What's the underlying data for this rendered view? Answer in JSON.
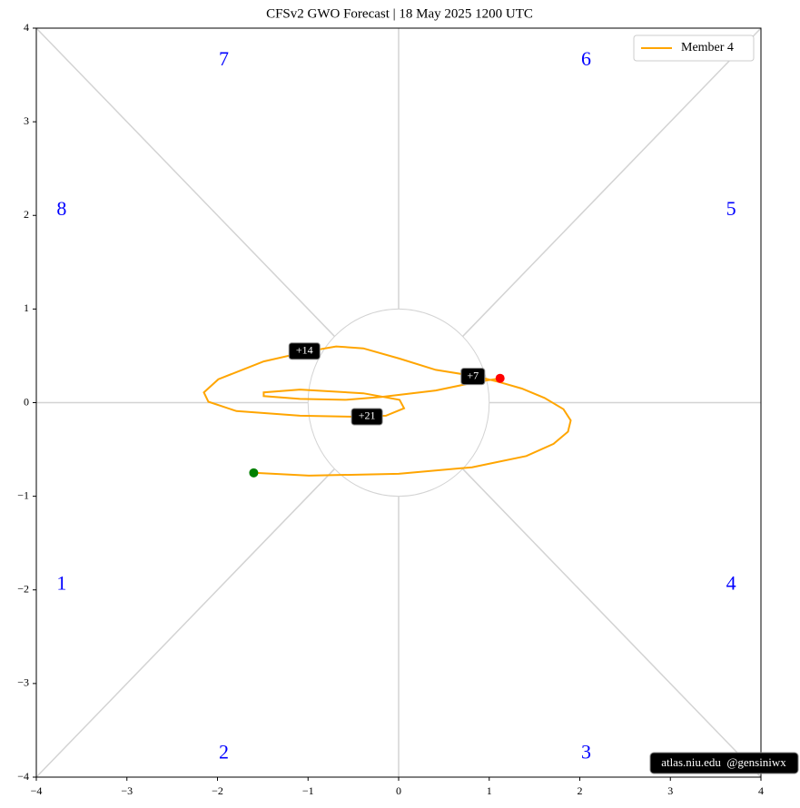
{
  "chart_data": {
    "type": "line",
    "title": "CFSv2 GWO Forecast   |   18  May  2025 1200 UTC",
    "xlim": [
      -4,
      4
    ],
    "ylim": [
      -4,
      4
    ],
    "xticks": [
      {
        "value": -4,
        "label": "−4"
      },
      {
        "value": -3,
        "label": "−3"
      },
      {
        "value": -2,
        "label": "−2"
      },
      {
        "value": -1,
        "label": "−1"
      },
      0,
      1,
      2,
      3,
      4
    ],
    "yticks": [
      {
        "value": -4,
        "label": "−4"
      },
      {
        "value": -3,
        "label": "−3"
      },
      {
        "value": -2,
        "label": "−2"
      },
      {
        "value": -1,
        "label": "−1"
      },
      0,
      1,
      2,
      3,
      4
    ],
    "legend": "upper right",
    "start_color": "green",
    "end_color": "red",
    "series": [
      {
        "name": "Member 4",
        "color": "orange",
        "x": [
          -1.6,
          -0.99,
          0,
          0.81,
          1.41,
          1.71,
          1.87,
          1.9,
          1.82,
          1.61,
          1.36,
          1.11,
          0.86,
          0.41,
          0.01,
          -0.39,
          -0.69,
          -0.99,
          -1.49,
          -1.99,
          -2.15,
          -2.1,
          -1.79,
          -1.09,
          -0.49,
          -0.14,
          0.06,
          0.01,
          -0.39,
          -1.09,
          -1.49,
          -1.49,
          -1.09,
          -0.59,
          -0.19,
          0.41,
          0.86,
          1.12
        ],
        "values": [
          -0.75,
          -0.78,
          -0.76,
          -0.69,
          -0.57,
          -0.44,
          -0.31,
          -0.19,
          -0.07,
          0.05,
          0.15,
          0.22,
          0.28,
          0.35,
          0.47,
          0.58,
          0.6,
          0.55,
          0.44,
          0.25,
          0.11,
          0.01,
          -0.09,
          -0.14,
          -0.15,
          -0.14,
          -0.06,
          0.03,
          0.1,
          0.14,
          0.11,
          0.07,
          0.04,
          0.03,
          0.06,
          0.13,
          0.22,
          0.26
        ]
      }
    ],
    "annotations": [
      {
        "text": "+7",
        "x": 0.82,
        "y": 0.28
      },
      {
        "text": "+14",
        "x": -1.04,
        "y": 0.55
      },
      {
        "text": "+21",
        "x": -0.35,
        "y": -0.15
      }
    ],
    "phase_labels": [
      "1",
      "2",
      "3",
      "4",
      "5",
      "6",
      "7",
      "8"
    ],
    "credit": "atlas.niu.edu  @gensiniwx"
  }
}
